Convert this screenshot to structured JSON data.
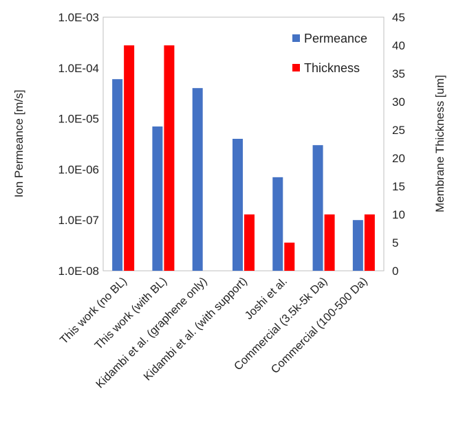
{
  "chart_data": {
    "type": "bar",
    "categories": [
      "This work (no BL)",
      "This work (with BL)",
      "Kidambi et al. (graphene only)",
      "Kidambi et al. (with support)",
      "Joshi et al.",
      "Commercial (3.5k-5k Da)",
      "Commercial (100-500 Da)"
    ],
    "series": [
      {
        "name": "Permeance",
        "axis": "left",
        "color": "#4472C4",
        "values": [
          6e-05,
          7e-06,
          4e-05,
          4e-06,
          7e-07,
          3e-06,
          1e-07
        ]
      },
      {
        "name": "Thickness",
        "axis": "right",
        "color": "#FF0000",
        "values": [
          40,
          40,
          0,
          10,
          5,
          10,
          10
        ]
      }
    ],
    "y_left": {
      "label": "Ion Permeance [m/s]",
      "scale": "log",
      "lim": [
        1e-08,
        0.001
      ],
      "ticks": [
        "1.0E-08",
        "1.0E-07",
        "1.0E-06",
        "1.0E-05",
        "1.0E-04",
        "1.0E-03"
      ]
    },
    "y_right": {
      "label": "Membrane Thickness [um]",
      "scale": "linear",
      "lim": [
        0,
        45
      ],
      "ticks": [
        "0",
        "5",
        "10",
        "15",
        "20",
        "25",
        "30",
        "35",
        "40",
        "45"
      ]
    },
    "grid": false,
    "legend": "top-right"
  }
}
